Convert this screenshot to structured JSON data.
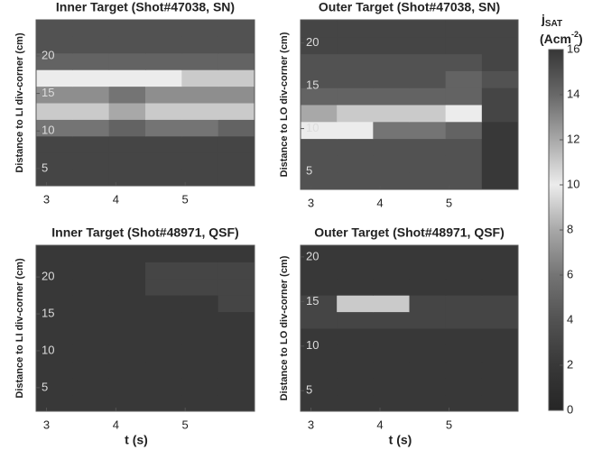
{
  "chart_data": [
    {
      "type": "heatmap",
      "title": "Inner Target (Shot#47038, SN)",
      "ylabel": "Distance to LI div-corner (cm)",
      "xlim": [
        2.85,
        6.0
      ],
      "xticks": [
        3,
        4,
        5
      ],
      "ylim": [
        2.7,
        24.8
      ],
      "yticks": [
        5,
        10,
        15,
        20
      ],
      "z": [
        [
          3,
          3,
          3,
          3,
          3,
          3
        ],
        [
          3,
          3,
          3,
          3,
          3,
          3
        ],
        [
          3,
          3,
          3,
          3,
          3,
          3
        ],
        [
          6,
          6,
          5,
          6,
          6,
          5
        ],
        [
          9,
          9,
          8,
          9,
          9,
          9
        ],
        [
          7,
          7,
          6,
          7,
          7,
          7
        ],
        [
          10,
          10,
          10,
          10,
          11,
          11
        ],
        [
          5,
          5,
          5,
          5,
          5,
          5
        ],
        [
          4,
          4,
          4,
          4,
          4,
          4
        ],
        [
          4,
          4,
          4,
          4,
          4,
          4
        ]
      ]
    },
    {
      "type": "heatmap",
      "title": "Outer Target (Shot#47038, SN)",
      "ylabel": "Distance to LO div-corner (cm)",
      "xlim": [
        2.85,
        6.0
      ],
      "xticks": [
        3,
        4,
        5
      ],
      "ylim": [
        2.9,
        22.7
      ],
      "yticks": [
        5,
        10,
        15,
        20
      ],
      "z": [
        [
          4,
          4,
          4,
          4,
          4,
          2
        ],
        [
          4,
          4,
          4,
          4,
          4,
          2
        ],
        [
          4,
          4,
          4,
          4,
          4,
          2
        ],
        [
          10,
          10,
          6,
          6,
          5,
          2
        ],
        [
          8,
          9,
          9,
          9,
          10,
          3
        ],
        [
          5,
          5,
          5,
          5,
          5,
          3
        ],
        [
          4,
          4,
          4,
          4,
          5,
          4
        ],
        [
          4,
          4,
          4,
          4,
          4,
          3
        ],
        [
          3,
          3,
          3,
          3,
          3,
          3
        ],
        [
          3,
          3,
          3,
          3,
          3,
          3
        ]
      ]
    },
    {
      "type": "heatmap",
      "title": "Inner Target (Shot#48971, QSF)",
      "ylabel": "Distance to LI div-corner (cm)",
      "xlabel": "t (s)",
      "xlim": [
        2.85,
        6.0
      ],
      "xticks": [
        3,
        4,
        5
      ],
      "ylim": [
        1.8,
        24.3
      ],
      "yticks": [
        5,
        10,
        15,
        20
      ],
      "z": [
        [
          2,
          2,
          2,
          2,
          2,
          2
        ],
        [
          2,
          2,
          2,
          2,
          2,
          2
        ],
        [
          2,
          2,
          2,
          2,
          2,
          2
        ],
        [
          2,
          2,
          2,
          2,
          2,
          2
        ],
        [
          2,
          2,
          2,
          2,
          2,
          2
        ],
        [
          2,
          2,
          2,
          2,
          2,
          2
        ],
        [
          2,
          2,
          2,
          2,
          2,
          3
        ],
        [
          2,
          2,
          2,
          3,
          3,
          3
        ],
        [
          2,
          2,
          2,
          3,
          3,
          3
        ],
        [
          2,
          2,
          2,
          2,
          2,
          2
        ]
      ]
    },
    {
      "type": "heatmap",
      "title": "Outer Target (Shot#48971, QSF)",
      "ylabel": "Distance to LO div-corner (cm)",
      "xlabel": "t (s)",
      "xlim": [
        2.85,
        6.0
      ],
      "xticks": [
        3,
        4,
        5
      ],
      "ylim": [
        2.7,
        21.3
      ],
      "yticks": [
        5,
        10,
        15,
        20
      ],
      "z": [
        [
          2,
          2,
          2,
          2,
          2,
          2
        ],
        [
          2,
          2,
          2,
          2,
          2,
          2
        ],
        [
          2,
          2,
          2,
          2,
          2,
          2
        ],
        [
          2,
          2,
          2,
          2,
          2,
          2
        ],
        [
          2,
          2,
          2,
          2,
          2,
          2
        ],
        [
          3,
          3,
          3,
          3,
          3,
          3
        ],
        [
          3,
          11,
          9,
          3,
          3,
          3
        ],
        [
          2,
          2,
          2,
          2,
          2,
          2
        ],
        [
          2,
          2,
          2,
          2,
          2,
          2
        ],
        [
          2,
          2,
          2,
          2,
          2,
          2
        ]
      ]
    }
  ],
  "colorbar": {
    "label": "j",
    "label_sub": "SAT",
    "unit": "(Acm",
    "unit_sup": "-2",
    "unit_end": ")",
    "clim": [
      0,
      16
    ],
    "ticks": [
      0,
      2,
      4,
      6,
      8,
      10,
      12,
      14,
      16
    ],
    "colors": [
      "#262626",
      "#383838",
      "#525252",
      "#747474",
      "#a8a8a8",
      "#ececec",
      "#a8a8a8",
      "#686868",
      "#363636"
    ]
  }
}
